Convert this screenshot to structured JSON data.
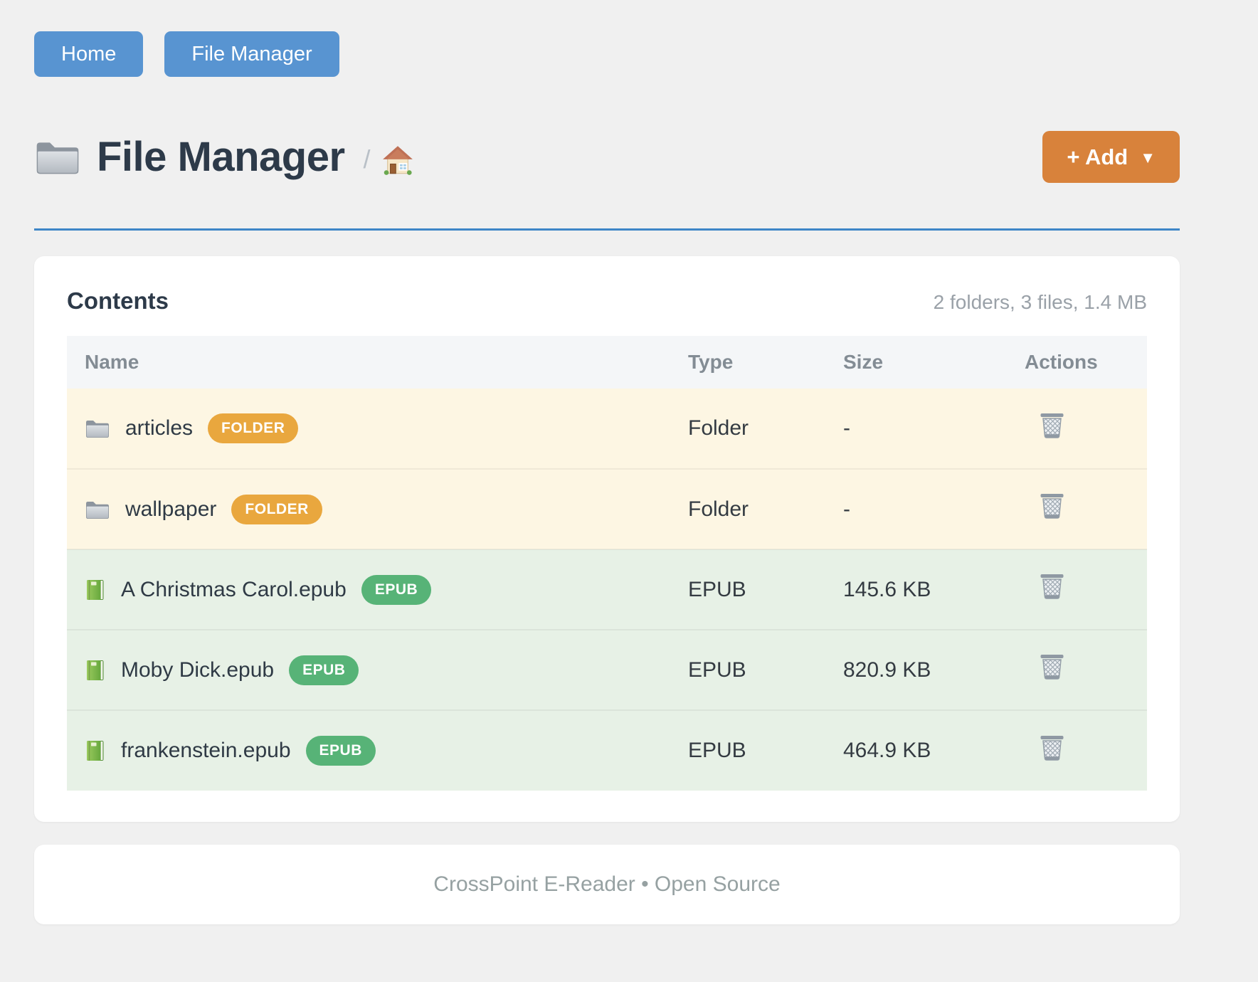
{
  "nav": {
    "home_label": "Home",
    "file_manager_label": "File Manager"
  },
  "header": {
    "title": "File Manager",
    "title_icon": "folder-icon",
    "breadcrumb_separator": "/",
    "breadcrumb_home_icon": "home-icon",
    "add_label": "+ Add",
    "add_caret": "▼"
  },
  "contents": {
    "title": "Contents",
    "summary": "2 folders, 3 files, 1.4 MB",
    "table": {
      "columns": [
        "Name",
        "Type",
        "Size",
        "Actions"
      ],
      "action_icon": "trash-icon",
      "rows": [
        {
          "name": "articles",
          "kind": "folder",
          "icon": "folder-icon",
          "badge": "FOLDER",
          "type": "Folder",
          "size": "-"
        },
        {
          "name": "wallpaper",
          "kind": "folder",
          "icon": "folder-icon",
          "badge": "FOLDER",
          "type": "Folder",
          "size": "-"
        },
        {
          "name": "A Christmas Carol.epub",
          "kind": "epub",
          "icon": "green-book-icon",
          "badge": "EPUB",
          "type": "EPUB",
          "size": "145.6 KB"
        },
        {
          "name": "Moby Dick.epub",
          "kind": "epub",
          "icon": "green-book-icon",
          "badge": "EPUB",
          "type": "EPUB",
          "size": "820.9 KB"
        },
        {
          "name": "frankenstein.epub",
          "kind": "epub",
          "icon": "green-book-icon",
          "badge": "EPUB",
          "type": "EPUB",
          "size": "464.9 KB"
        }
      ]
    }
  },
  "footer": {
    "text": "CrossPoint E-Reader • Open Source"
  },
  "colors": {
    "page_bg": "#f0f0f0",
    "nav_button": "#5894d1",
    "add_button": "#d8823b",
    "title_text": "#2d3a49",
    "divider": "#3e86c7",
    "table_header_bg": "#f4f6f8",
    "table_header_text": "#838c94",
    "folder_row_bg": "#fdf6e3",
    "epub_row_bg": "#e7f1e6",
    "folder_badge": "#e9a73e",
    "epub_badge": "#57b377",
    "muted_text": "#9aa1a8",
    "footer_text": "#96a1a2",
    "body_text": "#343b42"
  }
}
